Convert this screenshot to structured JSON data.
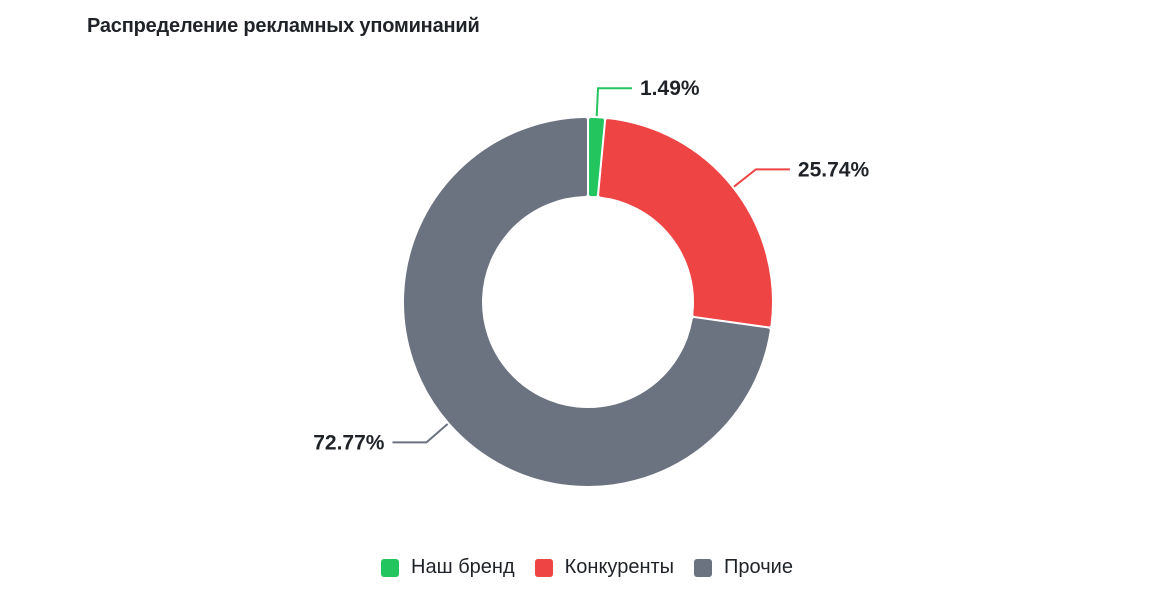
{
  "chart_data": {
    "type": "pie",
    "title": "Распределение рекламных упоминаний",
    "categories": [
      "Наш бренд",
      "Конкуренты",
      "Прочие"
    ],
    "values": [
      1.49,
      25.74,
      72.77
    ],
    "value_labels": [
      "1.49%",
      "25.74%",
      "72.77%"
    ],
    "colors": [
      "#22c55e",
      "#ef4444",
      "#6b7280"
    ],
    "style": "donut",
    "legend_position": "bottom-center"
  }
}
